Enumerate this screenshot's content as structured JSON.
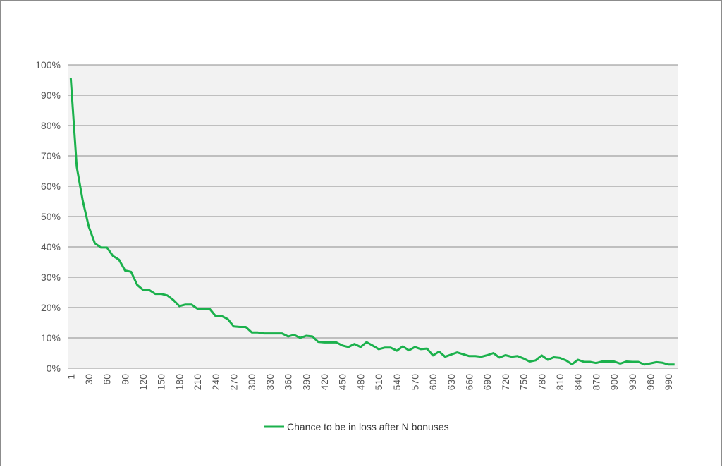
{
  "chart_data": {
    "type": "line",
    "title": "",
    "xlabel": "",
    "ylabel": "",
    "x": [
      1,
      10,
      20,
      30,
      40,
      50,
      60,
      70,
      80,
      90,
      100,
      110,
      120,
      130,
      140,
      150,
      160,
      170,
      180,
      190,
      200,
      210,
      220,
      230,
      240,
      250,
      260,
      270,
      280,
      290,
      300,
      310,
      320,
      330,
      340,
      350,
      360,
      370,
      380,
      390,
      400,
      410,
      420,
      430,
      440,
      450,
      460,
      470,
      480,
      490,
      500,
      510,
      520,
      530,
      540,
      550,
      560,
      570,
      580,
      590,
      600,
      610,
      620,
      630,
      640,
      650,
      660,
      670,
      680,
      690,
      700,
      710,
      720,
      730,
      740,
      750,
      760,
      770,
      780,
      790,
      800,
      810,
      820,
      830,
      840,
      850,
      860,
      870,
      880,
      890,
      900,
      910,
      920,
      930,
      940,
      950,
      960,
      970,
      980,
      990,
      1000
    ],
    "x_tick_labels": [
      "1",
      "30",
      "60",
      "90",
      "120",
      "150",
      "180",
      "210",
      "240",
      "270",
      "300",
      "330",
      "360",
      "390",
      "420",
      "450",
      "480",
      "510",
      "540",
      "570",
      "600",
      "630",
      "660",
      "690",
      "720",
      "750",
      "780",
      "810",
      "840",
      "870",
      "900",
      "930",
      "960",
      "990"
    ],
    "y_tick_labels": [
      "0%",
      "10%",
      "20%",
      "30%",
      "40%",
      "50%",
      "60%",
      "70%",
      "80%",
      "90%",
      "100%"
    ],
    "ylim": [
      0,
      100
    ],
    "y_unit": "percent",
    "grid": "horizontal",
    "legend_position": "bottom",
    "series": [
      {
        "name": "Chance to be in loss after N bonuses",
        "color": "#1bb14c",
        "values": [
          95.8,
          66.5,
          55.2,
          46.6,
          41.2,
          39.8,
          39.8,
          37.0,
          35.8,
          32.2,
          31.8,
          27.5,
          25.8,
          25.8,
          24.5,
          24.5,
          24.0,
          22.5,
          20.5,
          21.0,
          21.0,
          19.6,
          19.6,
          19.6,
          17.2,
          17.2,
          16.2,
          13.8,
          13.6,
          13.6,
          11.8,
          11.8,
          11.5,
          11.5,
          11.5,
          11.5,
          10.5,
          11.0,
          10.0,
          10.7,
          10.5,
          8.7,
          8.5,
          8.5,
          8.5,
          7.5,
          7.0,
          8.0,
          7.0,
          8.6,
          7.5,
          6.3,
          6.8,
          6.8,
          5.8,
          7.2,
          5.9,
          7.0,
          6.3,
          6.5,
          4.2,
          5.5,
          3.8,
          4.5,
          5.2,
          4.6,
          4.0,
          4.0,
          3.8,
          4.3,
          5.0,
          3.5,
          4.3,
          3.8,
          4.0,
          3.2,
          2.2,
          2.6,
          4.2,
          2.8,
          3.6,
          3.4,
          2.6,
          1.3,
          2.8,
          2.1,
          2.1,
          1.7,
          2.2,
          2.2,
          2.2,
          1.5,
          2.2,
          2.1,
          2.1,
          1.2,
          1.6,
          2.0,
          1.8,
          1.2,
          1.2
        ]
      }
    ]
  }
}
